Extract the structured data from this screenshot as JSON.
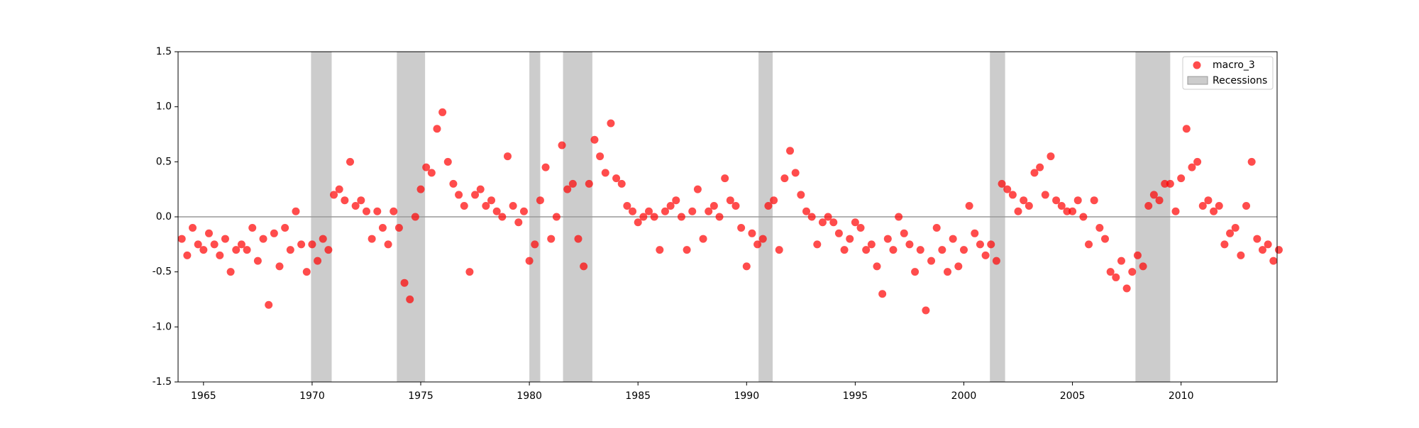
{
  "chart_data": {
    "type": "scatter",
    "series": [
      {
        "name": "macro_3",
        "color": "#ff0000",
        "x": [
          1964,
          1964.25,
          1964.5,
          1964.75,
          1965,
          1965.25,
          1965.5,
          1965.75,
          1966,
          1966.25,
          1966.5,
          1966.75,
          1967,
          1967.25,
          1967.5,
          1967.75,
          1968,
          1968.25,
          1968.5,
          1968.75,
          1969,
          1969.25,
          1969.5,
          1969.75,
          1970,
          1970.25,
          1970.5,
          1970.75,
          1971,
          1971.25,
          1971.5,
          1971.75,
          1972,
          1972.25,
          1972.5,
          1972.75,
          1973,
          1973.25,
          1973.5,
          1973.75,
          1974,
          1974.25,
          1974.5,
          1974.75,
          1975,
          1975.25,
          1975.5,
          1975.75,
          1976,
          1976.25,
          1976.5,
          1976.75,
          1977,
          1977.25,
          1977.5,
          1977.75,
          1978,
          1978.25,
          1978.5,
          1978.75,
          1979,
          1979.25,
          1979.5,
          1979.75,
          1980,
          1980.25,
          1980.5,
          1980.75,
          1981,
          1981.25,
          1981.5,
          1981.75,
          1982,
          1982.25,
          1982.5,
          1982.75,
          1983,
          1983.25,
          1983.5,
          1983.75,
          1984,
          1984.25,
          1984.5,
          1984.75,
          1985,
          1985.25,
          1985.5,
          1985.75,
          1986,
          1986.25,
          1986.5,
          1986.75,
          1987,
          1987.25,
          1987.5,
          1987.75,
          1988,
          1988.25,
          1988.5,
          1988.75,
          1989,
          1989.25,
          1989.5,
          1989.75,
          1990,
          1990.25,
          1990.5,
          1990.75,
          1991,
          1991.25,
          1991.5,
          1991.75,
          1992,
          1992.25,
          1992.5,
          1992.75,
          1993,
          1993.25,
          1993.5,
          1993.75,
          1994,
          1994.25,
          1994.5,
          1994.75,
          1995,
          1995.25,
          1995.5,
          1995.75,
          1996,
          1996.25,
          1996.5,
          1996.75,
          1997,
          1997.25,
          1997.5,
          1997.75,
          1998,
          1998.25,
          1998.5,
          1998.75,
          1999,
          1999.25,
          1999.5,
          1999.75,
          2000,
          2000.25,
          2000.5,
          2000.75,
          2001,
          2001.25,
          2001.5,
          2001.75,
          2002,
          2002.25,
          2002.5,
          2002.75,
          2003,
          2003.25,
          2003.5,
          2003.75,
          2004,
          2004.25,
          2004.5,
          2004.75,
          2005,
          2005.25,
          2005.5,
          2005.75,
          2006,
          2006.25,
          2006.5,
          2006.75,
          2007,
          2007.25,
          2007.5,
          2007.75,
          2008,
          2008.25,
          2008.5,
          2008.75,
          2009,
          2009.25,
          2009.5,
          2009.75,
          2010,
          2010.25,
          2010.5,
          2010.75,
          2011,
          2011.25,
          2011.5,
          2011.75,
          2012,
          2012.25,
          2012.5,
          2012.75,
          2013,
          2013.25,
          2013.5,
          2013.75,
          2014,
          2014.25,
          2014.5
        ],
        "values": [
          -0.2,
          -0.35,
          -0.1,
          -0.25,
          -0.3,
          -0.15,
          -0.25,
          -0.35,
          -0.2,
          -0.5,
          -0.3,
          -0.25,
          -0.3,
          -0.1,
          -0.4,
          -0.2,
          -0.8,
          -0.15,
          -0.45,
          -0.1,
          -0.3,
          0.05,
          -0.25,
          -0.5,
          -0.25,
          -0.4,
          -0.2,
          -0.3,
          0.2,
          0.25,
          0.15,
          0.5,
          0.1,
          0.15,
          0.05,
          -0.2,
          0.05,
          -0.1,
          -0.25,
          0.05,
          -0.1,
          -0.6,
          -0.75,
          0.0,
          0.25,
          0.45,
          0.4,
          0.8,
          0.95,
          0.5,
          0.3,
          0.2,
          0.1,
          -0.5,
          0.2,
          0.25,
          0.1,
          0.15,
          0.05,
          0.0,
          0.55,
          0.1,
          -0.05,
          0.05,
          -0.4,
          -0.25,
          0.15,
          0.45,
          -0.2,
          0.0,
          0.65,
          0.25,
          0.3,
          -0.2,
          -0.45,
          0.3,
          0.7,
          0.55,
          0.4,
          0.85,
          0.35,
          0.3,
          0.1,
          0.05,
          -0.05,
          0.0,
          0.05,
          0.0,
          -0.3,
          0.05,
          0.1,
          0.15,
          0.0,
          -0.3,
          0.05,
          0.25,
          -0.2,
          0.05,
          0.1,
          0.0,
          0.35,
          0.15,
          0.1,
          -0.1,
          -0.45,
          -0.15,
          -0.25,
          -0.2,
          0.1,
          0.15,
          -0.3,
          0.35,
          0.6,
          0.4,
          0.2,
          0.05,
          0.0,
          -0.25,
          -0.05,
          0.0,
          -0.05,
          -0.15,
          -0.3,
          -0.2,
          -0.05,
          -0.1,
          -0.3,
          -0.25,
          -0.45,
          -0.7,
          -0.2,
          -0.3,
          0.0,
          -0.15,
          -0.25,
          -0.5,
          -0.3,
          -0.85,
          -0.4,
          -0.1,
          -0.3,
          -0.5,
          -0.2,
          -0.45,
          -0.3,
          0.1,
          -0.15,
          -0.25,
          -0.35,
          -0.25,
          -0.4,
          0.3,
          0.25,
          0.2,
          0.05,
          0.15,
          0.1,
          0.4,
          0.45,
          0.2,
          0.55,
          0.15,
          0.1,
          0.05,
          0.05,
          0.15,
          0.0,
          -0.25,
          0.15,
          -0.1,
          -0.2,
          -0.5,
          -0.55,
          -0.4,
          -0.65,
          -0.5,
          -0.35,
          -0.45,
          0.1,
          0.2,
          0.15,
          0.3,
          0.3,
          0.05,
          0.35,
          0.8,
          0.45,
          0.5,
          0.1,
          0.15,
          0.05,
          0.1,
          -0.25,
          -0.15,
          -0.1,
          -0.35,
          0.1,
          0.5,
          -0.2,
          -0.3,
          -0.25,
          -0.4,
          -0.3
        ]
      }
    ],
    "shaded": {
      "name": "Recessions",
      "color": "#999999",
      "spans": [
        [
          1969.95,
          1970.9
        ],
        [
          1973.9,
          1975.2
        ],
        [
          1980.0,
          1980.5
        ],
        [
          1981.55,
          1982.9
        ],
        [
          1990.55,
          1991.2
        ],
        [
          2001.2,
          2001.9
        ],
        [
          2007.9,
          2009.5
        ]
      ]
    },
    "hline": 0,
    "xlim": [
      1963.83,
      2014.42
    ],
    "ylim": [
      -1.5,
      1.5
    ],
    "xticks": [
      1965,
      1970,
      1975,
      1980,
      1985,
      1990,
      1995,
      2000,
      2005,
      2010
    ],
    "yticks": [
      -1.5,
      {
        "value": -1,
        "label": "-1.0"
      },
      -0.5,
      {
        "value": 0,
        "label": "0.0"
      },
      0.5,
      {
        "value": 1,
        "label": "1.0"
      },
      1.5
    ],
    "legend": "upper right"
  }
}
